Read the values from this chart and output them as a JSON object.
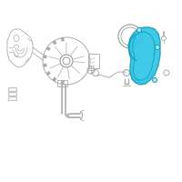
{
  "bg": "#ffffff",
  "lc": "#aaaaaa",
  "dc": "#888888",
  "hc": "#29c5e6",
  "hec": "#1a9db8",
  "hc2": "#4dd0ea",
  "fig_size": [
    2.0,
    2.0
  ],
  "dpi": 100
}
